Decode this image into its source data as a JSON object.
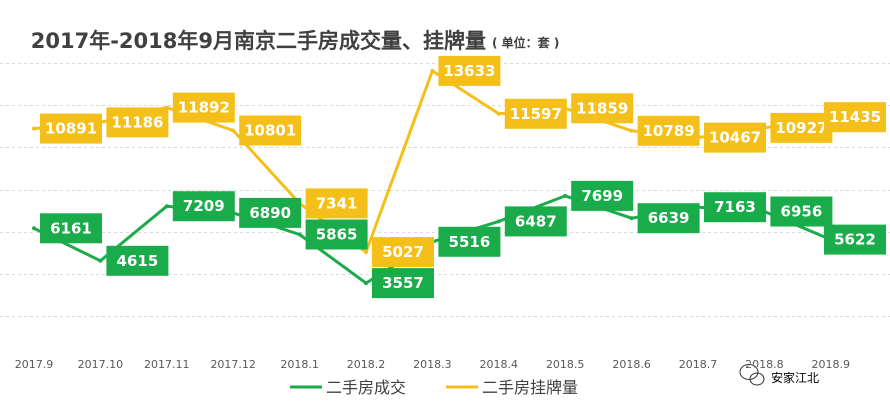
{
  "chart_data": {
    "type": "line",
    "title": "2017年-2018年9月南京二手房成交量、挂牌量",
    "unit_note": "( 单位：套 )",
    "categories": [
      "2017.9",
      "2017.10",
      "2017.11",
      "2017.12",
      "2018.1",
      "2018.2",
      "2018.3",
      "2018.4",
      "2018.5",
      "2018.6",
      "2018.7",
      "2018.8",
      "2018.9"
    ],
    "series": [
      {
        "name": "二手房成交",
        "color": "#1aac4a",
        "values": [
          6161,
          4615,
          7209,
          6890,
          5865,
          3557,
          5516,
          6487,
          7699,
          6639,
          7163,
          6956,
          5622
        ]
      },
      {
        "name": "二手房挂牌量",
        "color": "#f5bf1a",
        "values": [
          10891,
          11186,
          11892,
          10801,
          7341,
          5027,
          13633,
          11597,
          11859,
          10789,
          10467,
          10927,
          11435
        ]
      }
    ],
    "ylim": [
      0,
      17000
    ],
    "grid": true,
    "legend": "bottom-center",
    "xlabel": "",
    "ylabel": ""
  },
  "watermark": "安家江北",
  "colors": {
    "grid": "#d9d9d9",
    "text": "#404040",
    "tick": "#595959"
  }
}
